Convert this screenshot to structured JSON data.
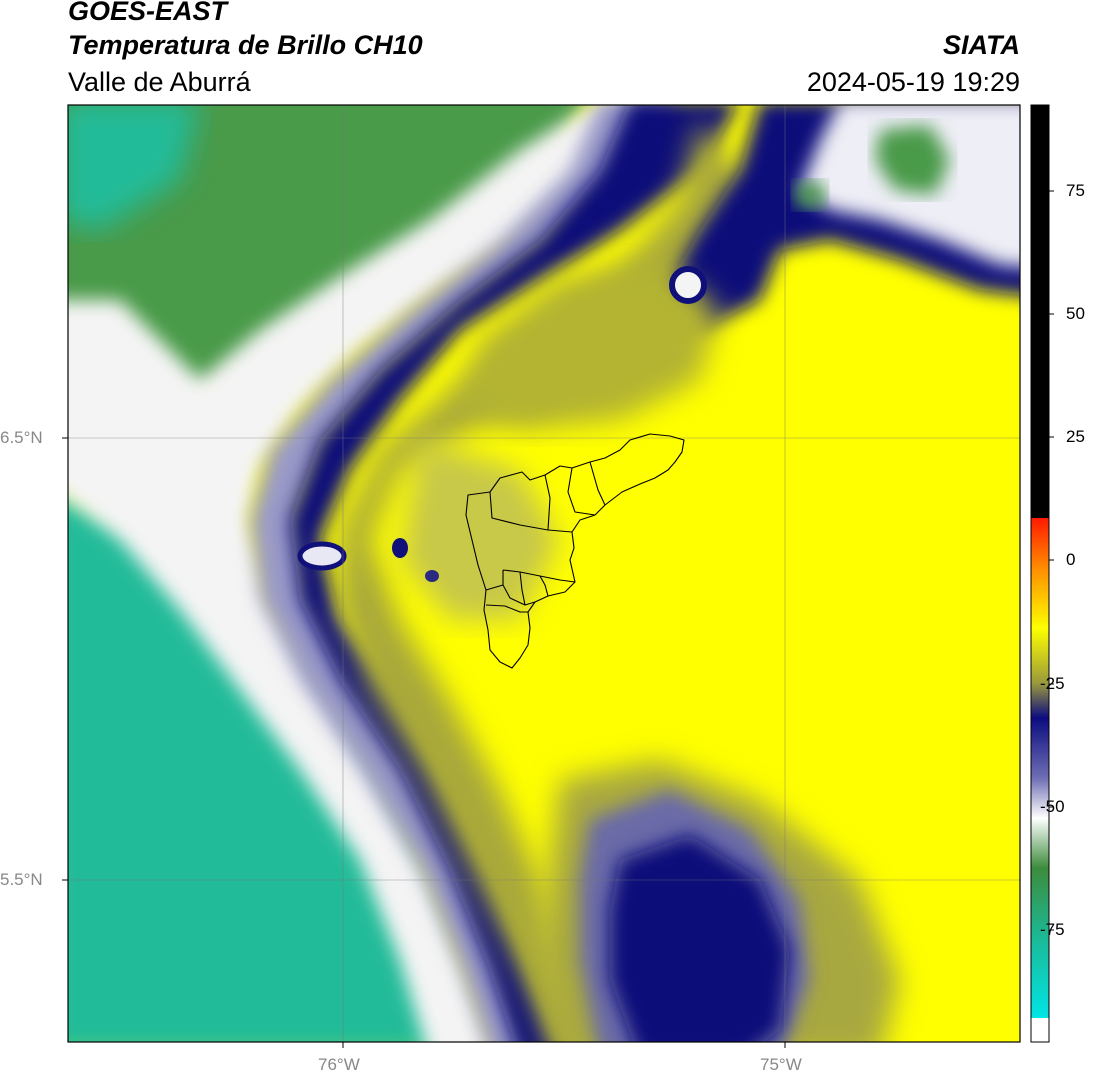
{
  "header": {
    "satellite": "GOES-EAST",
    "product": "Temperatura de Brillo CH10",
    "region": "Valle de Aburrá",
    "organization": "SIATA",
    "timestamp": "2024-05-19 19:29"
  },
  "axes": {
    "lon_ticks": [
      "76°W",
      "75°W"
    ],
    "lat_ticks": [
      "6.5°N",
      "5.5°N"
    ]
  },
  "colorbar": {
    "ticks": [
      "75",
      "50",
      "25",
      "0",
      "-25",
      "-50",
      "-75"
    ],
    "colors": {
      "black": "#000000",
      "red": "#ff1a00",
      "orange": "#ff8c00",
      "yellow": "#ffff00",
      "olive": "#9a9a3c",
      "navy": "#0c0c80",
      "lavender": "#b8b8dc",
      "white": "#ffffff",
      "green": "#3c8c3c",
      "teal": "#1abc9c",
      "cyan": "#00e5e5"
    }
  },
  "colors": {
    "yellow": "#ffff00",
    "olive": "#b4b432",
    "navy": "#10107a",
    "lavender": "#9a9ac8",
    "white": "#f4f4f4",
    "green": "#4a9a4a",
    "teal": "#22bb99",
    "boundary": "#000000"
  }
}
